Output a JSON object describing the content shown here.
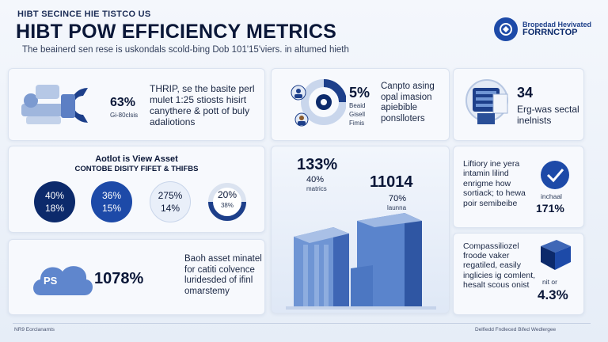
{
  "header": {
    "kicker": "HIBT SECINCE HIE TISTCO US",
    "title": "HIBT POW EFFICIENCY METRICS",
    "subtitle": "The beainerd sen rese is uskondals scold-bing Dob 101'15'viers. in altumed hieth"
  },
  "logo": {
    "line1": "Bropedad Hevivated",
    "line2": "FORRNCTOP"
  },
  "card1": {
    "stat": "63%",
    "stat_caption": "Gi-80clsis",
    "text": "THRIP, se the basite perl mulet 1:25 stiosts hisirt canythere & pott of buly adaliotions"
  },
  "card2": {
    "stat": "5%",
    "caption_lines": [
      "Beaid",
      "Gisell",
      "Fimis"
    ],
    "text": "Canpto asing opal imasion apiebible ponslloters"
  },
  "card3": {
    "stat": "34",
    "text": "Erg-was sectal inelnists"
  },
  "card4": {
    "title": "Aotlot is View Asset",
    "subtitle": "CONTOBE DISITY FIFET & THIFBS",
    "circles": [
      {
        "top": "40%",
        "bottom": "18%"
      },
      {
        "top": "36%",
        "bottom": "15%"
      },
      {
        "top": "275%",
        "bottom": "14%"
      },
      {
        "top": "20%",
        "bottom": "38%"
      }
    ]
  },
  "card5": {
    "stat1": "133%",
    "stat2": "40%",
    "stat2_caption": "matrics",
    "stat3": "11014",
    "stat4": "70%",
    "stat4_caption": "launna"
  },
  "card6": {
    "text": "Liftiory ine yera intamin lilind enrigme how sortiack; to hewa poir semibeibe",
    "caption": "inchaal",
    "stat": "171%"
  },
  "card7": {
    "badge": "PS",
    "stat": "1078%",
    "text": "Baoh asset minatel for catiti colvence luridesded of ifinl omarstemy"
  },
  "card8": {
    "text": "Compassiliozel froode vaker regatiled, easily inglicies ig comlent, hesalt scous onist",
    "caption": "nit or",
    "stat": "4.3%"
  },
  "footer": {
    "left": "NR9 Eorclanamts",
    "right": "Delfiedd Fndleced Bifed Wedlergee"
  },
  "colors": {
    "accent": "#1d4aa8",
    "navy": "#0c2a6b",
    "light_blue": "#6f95d4"
  }
}
